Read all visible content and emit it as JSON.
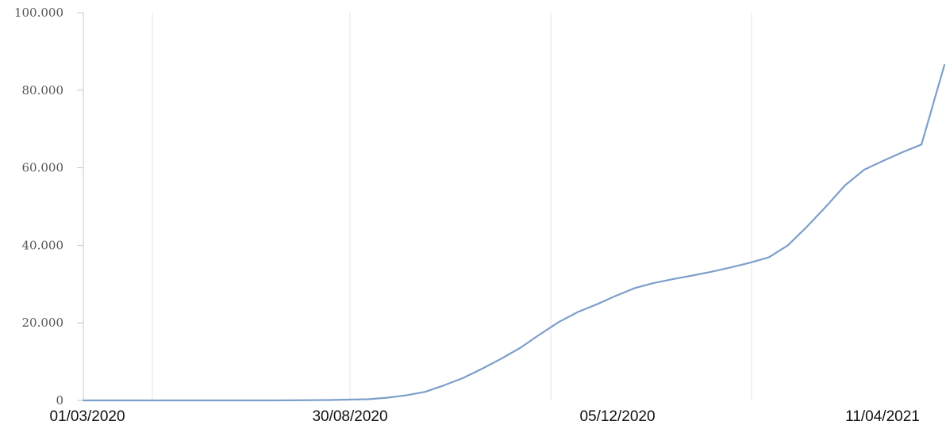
{
  "chart_data": {
    "type": "line",
    "title": "",
    "xlabel": "",
    "ylabel": "",
    "ylim": [
      0,
      100000
    ],
    "y_ticks": [
      0,
      20000,
      40000,
      60000,
      80000,
      100000
    ],
    "y_tick_labels": [
      "0",
      "20.000",
      "40.000",
      "60.000",
      "80.000",
      "100.000"
    ],
    "x_tick_labels": [
      "01/03/2020",
      "30/08/2020",
      "05/12/2020",
      "11/04/2021"
    ],
    "gridlines": "vertical",
    "legend": "none",
    "series": [
      {
        "color": "#7d9fcb",
        "x": [
          "2020-03-01",
          "2020-04-09",
          "2020-05-09",
          "2020-06-08",
          "2020-07-08",
          "2020-07-28",
          "2020-08-07",
          "2020-08-17",
          "2020-08-27",
          "2020-09-06",
          "2020-09-16",
          "2020-09-26",
          "2020-10-06",
          "2020-10-16",
          "2020-10-26",
          "2020-11-05",
          "2020-11-15",
          "2020-11-25",
          "2020-12-05",
          "2020-12-15",
          "2020-12-25",
          "2021-01-04",
          "2021-01-14",
          "2021-01-24",
          "2021-02-03",
          "2021-02-13",
          "2021-02-23",
          "2021-03-05",
          "2021-03-15",
          "2021-03-25",
          "2021-04-04",
          "2021-04-14",
          "2021-04-24",
          "2021-05-04",
          "2021-05-14",
          "2021-05-26"
        ],
        "y": [
          0,
          0,
          0,
          0,
          100,
          300,
          700,
          1300,
          2200,
          3900,
          5800,
          8200,
          10800,
          13600,
          17000,
          20200,
          22800,
          24800,
          27000,
          29000,
          30300,
          31300,
          32200,
          33200,
          34300,
          35500,
          36900,
          40000,
          44800,
          50000,
          55500,
          59500,
          61800,
          64000,
          66000,
          86500
        ]
      }
    ]
  }
}
